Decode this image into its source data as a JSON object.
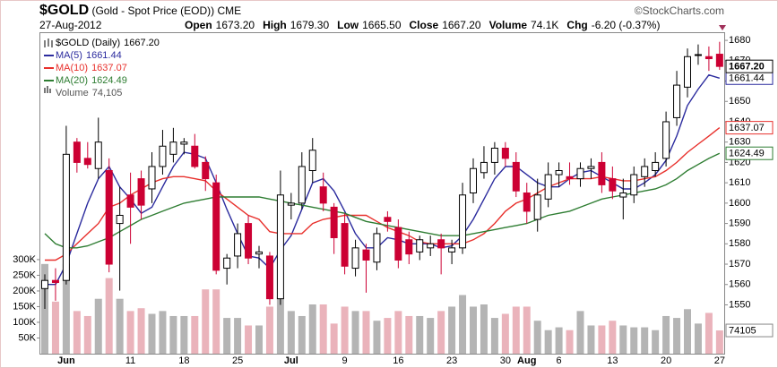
{
  "chart_data": {
    "type": "candlestick",
    "title": "$GOLD",
    "subtitle": "(Gold - Spot Price (EOD))",
    "exchange": "CME",
    "credit": "©StockCharts.com",
    "date": "27-Aug-2012",
    "summary": [
      {
        "label": "Open",
        "value": "1673.20"
      },
      {
        "label": "High",
        "value": "1679.30"
      },
      {
        "label": "Low",
        "value": "1665.50"
      },
      {
        "label": "Close",
        "value": "1667.20"
      },
      {
        "label": "Volume",
        "value": "74.1K"
      },
      {
        "label": "Chg",
        "value": "-6.20 (-0.37%)"
      }
    ],
    "name": "$GOLD (Daily)",
    "close_label": "1667.20",
    "up_color": "#ffffff",
    "down_color": "#cc0033",
    "categories": [
      null,
      null,
      "Jun",
      null,
      null,
      null,
      null,
      null,
      "11",
      null,
      null,
      null,
      null,
      "18",
      null,
      null,
      null,
      null,
      "25",
      null,
      null,
      null,
      null,
      "Jul",
      null,
      null,
      null,
      null,
      "9",
      null,
      null,
      null,
      null,
      "16",
      null,
      null,
      null,
      null,
      "23",
      null,
      null,
      null,
      null,
      "30",
      null,
      "Aug",
      null,
      null,
      "6",
      null,
      null,
      null,
      null,
      "13",
      null,
      null,
      null,
      null,
      "20",
      null,
      null,
      null,
      null,
      "27"
    ],
    "open": [
      1558,
      1562,
      1562,
      1630,
      1622,
      1617,
      1616,
      1590,
      1604,
      1612,
      1607,
      1618,
      1624,
      1629,
      1628,
      1620,
      1610,
      1568,
      1574,
      1590,
      1575,
      1574,
      1553,
      1599,
      1600,
      1616,
      1608,
      1598,
      1590,
      1568,
      1577,
      1571,
      1593,
      1588,
      1582,
      1576,
      1578,
      1582,
      1576,
      1578,
      1605,
      1615,
      1620,
      1627,
      1620,
      1605,
      1592,
      1602,
      1614,
      1613,
      1612,
      1617,
      1620,
      1612,
      1603,
      1604,
      1613,
      1616,
      1622,
      1642,
      1657,
      1673,
      1672,
      1673.2
    ],
    "high": [
      1565,
      1568,
      1638,
      1632,
      1630,
      1642,
      1622,
      1608,
      1615,
      1616,
      1625,
      1636,
      1637,
      1632,
      1634,
      1623,
      1614,
      1575,
      1590,
      1594,
      1579,
      1576,
      1616,
      1605,
      1625,
      1632,
      1615,
      1600,
      1595,
      1582,
      1580,
      1588,
      1596,
      1592,
      1586,
      1584,
      1584,
      1585,
      1582,
      1610,
      1622,
      1628,
      1630,
      1630,
      1625,
      1610,
      1612,
      1620,
      1620,
      1620,
      1620,
      1622,
      1625,
      1618,
      1612,
      1618,
      1622,
      1625,
      1645,
      1665,
      1676,
      1678,
      1677,
      1679.3
    ],
    "low": [
      1548,
      1552,
      1560,
      1615,
      1617,
      1612,
      1566,
      1557,
      1580,
      1592,
      1600,
      1614,
      1620,
      1624,
      1617,
      1606,
      1565,
      1560,
      1568,
      1570,
      1568,
      1550,
      1550,
      1592,
      1597,
      1610,
      1596,
      1575,
      1565,
      1564,
      1556,
      1567,
      1586,
      1568,
      1570,
      1572,
      1574,
      1565,
      1570,
      1575,
      1600,
      1612,
      1614,
      1618,
      1603,
      1590,
      1586,
      1598,
      1608,
      1609,
      1608,
      1612,
      1605,
      1602,
      1592,
      1600,
      1608,
      1613,
      1618,
      1638,
      1652,
      1668,
      1665,
      1665.5
    ],
    "close": [
      1562,
      1561,
      1624,
      1620,
      1619,
      1630,
      1570,
      1594,
      1598,
      1599,
      1618,
      1628,
      1630,
      1630,
      1618,
      1612,
      1567,
      1573,
      1585,
      1573,
      1576,
      1553,
      1604,
      1600,
      1618,
      1626,
      1600,
      1583,
      1569,
      1578,
      1572,
      1585,
      1591,
      1572,
      1575,
      1582,
      1580,
      1578,
      1578,
      1604,
      1617,
      1620,
      1627,
      1622,
      1606,
      1596,
      1604,
      1614,
      1616,
      1612,
      1617,
      1618,
      1609,
      1606,
      1605,
      1614,
      1618,
      1620,
      1640,
      1658,
      1672,
      1673,
      1671,
      1667.2
    ],
    "series": [
      {
        "name": "MA(5)",
        "color": "#2b2b9e",
        "values": [
          1560,
          1560,
          1570,
          1585,
          1600,
          1612,
          1618,
          1608,
          1602,
          1595,
          1598,
          1608,
          1618,
          1625,
          1624,
          1622,
          1610,
          1597,
          1585,
          1574,
          1573,
          1568,
          1577,
          1584,
          1597,
          1610,
          1612,
          1606,
          1596,
          1585,
          1578,
          1578,
          1583,
          1582,
          1580,
          1580,
          1580,
          1578,
          1579,
          1584,
          1592,
          1602,
          1612,
          1618,
          1618,
          1614,
          1610,
          1608,
          1608,
          1612,
          1615,
          1616,
          1613,
          1610,
          1607,
          1607,
          1610,
          1614,
          1621,
          1633,
          1648,
          1656,
          1663,
          1661.44
        ]
      },
      {
        "name": "MA(10)",
        "color": "#e8302c",
        "values": [
          1572,
          1572,
          1575,
          1580,
          1585,
          1590,
          1598,
          1600,
          1604,
          1607,
          1610,
          1612,
          1613,
          1613,
          1612,
          1611,
          1606,
          1602,
          1598,
          1594,
          1592,
          1586,
          1585,
          1585,
          1585,
          1590,
          1592,
          1593,
          1594,
          1594,
          1594,
          1591,
          1588,
          1586,
          1584,
          1581,
          1580,
          1580,
          1580,
          1580,
          1582,
          1585,
          1590,
          1596,
          1600,
          1602,
          1605,
          1608,
          1610,
          1612,
          1612,
          1612,
          1613,
          1612,
          1611,
          1611,
          1612,
          1613,
          1616,
          1620,
          1625,
          1629,
          1633,
          1637.07
        ]
      },
      {
        "name": "MA(20)",
        "color": "#2e7d32",
        "values": [
          1585,
          1580,
          1578,
          1578,
          1579,
          1581,
          1583,
          1586,
          1589,
          1592,
          1594,
          1596,
          1598,
          1600,
          1601,
          1602,
          1603,
          1603,
          1603,
          1603,
          1603,
          1602,
          1601,
          1600,
          1599,
          1598,
          1597,
          1596,
          1595,
          1593,
          1591,
          1590,
          1589,
          1588,
          1587,
          1586,
          1585,
          1584,
          1584,
          1584,
          1585,
          1586,
          1587,
          1588,
          1589,
          1590,
          1592,
          1594,
          1595,
          1596,
          1598,
          1600,
          1602,
          1603,
          1604,
          1605,
          1606,
          1607,
          1609,
          1612,
          1616,
          1619,
          1622,
          1624.49
        ]
      }
    ],
    "ylim": [
      1526,
      1684
    ],
    "yticks": [
      1550,
      1560,
      1570,
      1580,
      1590,
      1600,
      1610,
      1620,
      1630,
      1640,
      1650,
      1660,
      1670,
      1680
    ],
    "volume": {
      "name": "Volume",
      "label": "74,105",
      "up_color": "#b4b4b4",
      "down_color": "#eab3bb",
      "values": [
        286000,
        166000,
        286000,
        136000,
        120000,
        175000,
        241000,
        175000,
        136000,
        145000,
        127000,
        136000,
        120000,
        120000,
        120000,
        205000,
        205000,
        114000,
        114000,
        90000,
        90000,
        150000,
        181000,
        136000,
        120000,
        157000,
        157000,
        96000,
        150000,
        136000,
        136000,
        105000,
        114000,
        136000,
        120000,
        120000,
        114000,
        136000,
        150000,
        187000,
        150000,
        157000,
        114000,
        127000,
        150000,
        150000,
        105000,
        75000,
        84000,
        75000,
        136000,
        90000,
        90000,
        105000,
        90000,
        84000,
        84000,
        75000,
        120000,
        114000,
        142000,
        96000,
        130000,
        74105
      ],
      "ylim": [
        0,
        1025000
      ],
      "yticks": [
        {
          "value": 50000,
          "label": "50K"
        },
        {
          "value": 100000,
          "label": "100K"
        },
        {
          "value": 150000,
          "label": "150K"
        },
        {
          "value": 200000,
          "label": "200K"
        },
        {
          "value": 250000,
          "label": "250K"
        },
        {
          "value": 300000,
          "label": "300K"
        }
      ]
    }
  }
}
